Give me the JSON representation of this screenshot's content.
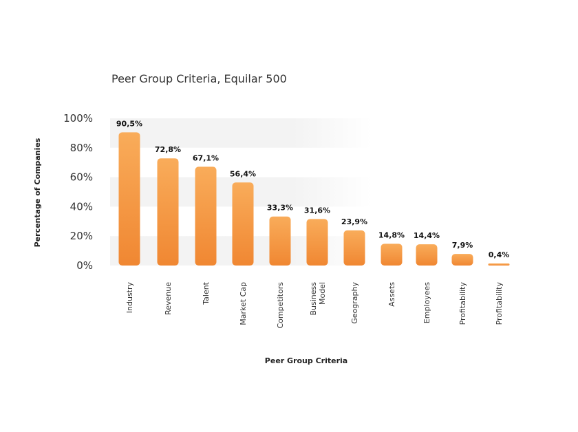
{
  "chart_data": {
    "type": "bar",
    "title": "Peer Group Criteria, Equilar 500",
    "xlabel": "Peer Group Criteria",
    "ylabel": "Percentage of Companies",
    "ylim": [
      0,
      100
    ],
    "yticks": [
      "0%",
      "20%",
      "40%",
      "60%",
      "80%",
      "100%"
    ],
    "grid": "alternating horizontal bands",
    "categories": [
      [
        "Industry"
      ],
      [
        "Revenue"
      ],
      [
        "Talent"
      ],
      [
        "Market Cap"
      ],
      [
        "Competitors"
      ],
      [
        "Business",
        "Model"
      ],
      [
        "Geography"
      ],
      [
        "Assets"
      ],
      [
        "Employees"
      ],
      [
        "Profitability"
      ],
      [
        "Profitability"
      ]
    ],
    "values": [
      90.5,
      72.8,
      67.1,
      56.4,
      33.3,
      31.6,
      23.9,
      14.8,
      14.4,
      7.9,
      0.4
    ],
    "value_labels": [
      "90,5%",
      "72,8%",
      "67,1%",
      "56,4%",
      "33,3%",
      "31,6%",
      "23,9%",
      "14,8%",
      "14,4%",
      "7,9%",
      "0,4%"
    ],
    "colors": {
      "bar_top": "#F9AC5A",
      "bar_bottom": "#F08732",
      "band": "#F3F3F3"
    }
  }
}
